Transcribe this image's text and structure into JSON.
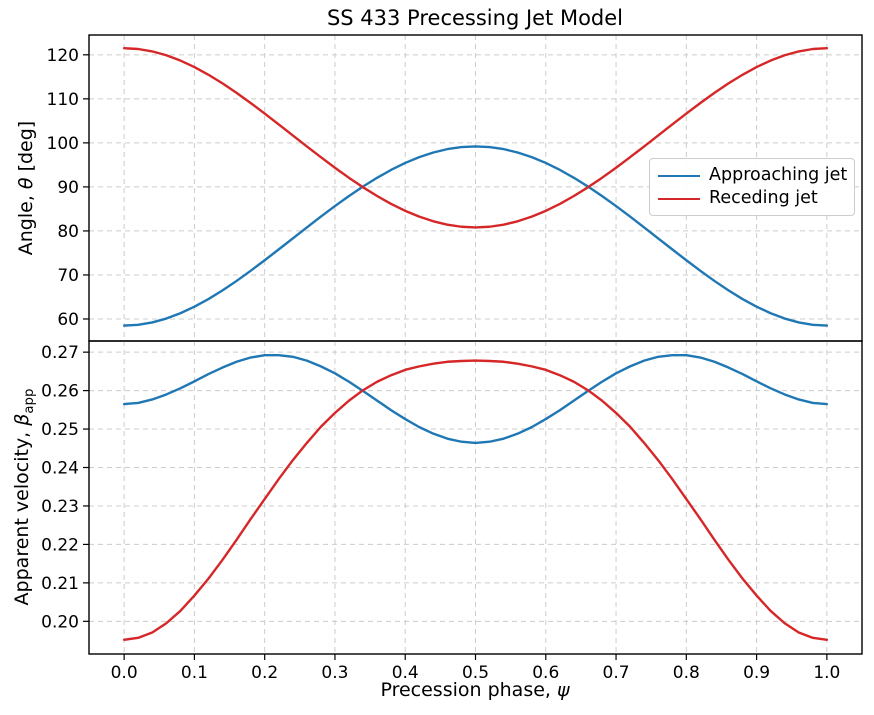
{
  "title": "SS 433 Precessing Jet Model",
  "colors": {
    "approaching": "#1f77b4",
    "receding": "#d62728",
    "grid": "#cccccc",
    "spine": "#000000",
    "background": "#ffffff"
  },
  "legend": {
    "items": [
      {
        "label": "Approaching jet",
        "color": "#1f77b4"
      },
      {
        "label": "Receding jet",
        "color": "#d62728"
      }
    ]
  },
  "labels": {
    "xlabel_pre": "Precession phase, ",
    "xlabel_sym": "ψ",
    "ylabel_top_pre": "Angle, ",
    "ylabel_top_sym": "θ",
    "ylabel_top_post": " [deg]",
    "ylabel_bottom_pre": "Apparent velocity, ",
    "ylabel_bottom_sym": "β",
    "ylabel_bottom_sub": "app"
  },
  "chart_data": [
    {
      "type": "line",
      "panel": "top",
      "title": "SS 433 Precessing Jet Model",
      "ylabel": "Angle, θ [deg]",
      "xlim": [
        -0.05,
        1.05
      ],
      "ylim": [
        55.0,
        124.5
      ],
      "grid": true,
      "yticks": [
        "60",
        "70",
        "80",
        "90",
        "100",
        "110",
        "120"
      ],
      "xticks": [
        "0.0",
        "0.1",
        "0.2",
        "0.3",
        "0.4",
        "0.5",
        "0.6",
        "0.7",
        "0.8",
        "0.9",
        "1.0"
      ],
      "show_x_tick_labels": false,
      "legend_position": "center right",
      "x": [
        0.0,
        0.02,
        0.04,
        0.06,
        0.08,
        0.1,
        0.12,
        0.14,
        0.16,
        0.18,
        0.2,
        0.22,
        0.24,
        0.26,
        0.28,
        0.3,
        0.32,
        0.34,
        0.36,
        0.38,
        0.4,
        0.42,
        0.44,
        0.46,
        0.48,
        0.5,
        0.52,
        0.54,
        0.56,
        0.58,
        0.6,
        0.62,
        0.64,
        0.66,
        0.68,
        0.7,
        0.72,
        0.74,
        0.76,
        0.78,
        0.8,
        0.82,
        0.84,
        0.86,
        0.88,
        0.9,
        0.92,
        0.94,
        0.96,
        0.98,
        1.0
      ],
      "series": [
        {
          "name": "Approaching jet",
          "color": "#1f77b4",
          "values": [
            58.5,
            58.68,
            59.22,
            60.1,
            61.3,
            62.79,
            64.53,
            66.49,
            68.64,
            70.94,
            73.34,
            75.81,
            78.3,
            80.8,
            83.26,
            85.65,
            87.94,
            90.09,
            92.07,
            93.87,
            95.44,
            96.76,
            97.81,
            98.58,
            99.05,
            99.2,
            99.05,
            98.58,
            97.81,
            96.76,
            95.44,
            93.87,
            92.07,
            90.09,
            87.94,
            85.65,
            83.26,
            80.8,
            78.3,
            75.81,
            73.34,
            70.94,
            68.64,
            66.49,
            64.53,
            62.79,
            61.3,
            60.1,
            59.22,
            58.68,
            58.5
          ]
        },
        {
          "name": "Receding jet",
          "color": "#d62728",
          "values": [
            121.5,
            121.32,
            120.78,
            119.9,
            118.7,
            117.21,
            115.47,
            113.51,
            111.36,
            109.06,
            106.66,
            104.19,
            101.7,
            99.2,
            96.74,
            94.35,
            92.06,
            89.91,
            87.93,
            86.13,
            84.56,
            83.24,
            82.19,
            81.42,
            80.95,
            80.8,
            80.95,
            81.42,
            82.19,
            83.24,
            84.56,
            86.13,
            87.93,
            89.91,
            92.06,
            94.35,
            96.74,
            99.2,
            101.7,
            104.19,
            106.66,
            109.06,
            111.36,
            113.51,
            115.47,
            117.21,
            118.7,
            119.9,
            120.78,
            121.32,
            121.5
          ]
        }
      ]
    },
    {
      "type": "line",
      "panel": "bottom",
      "xlabel": "Precession phase, ψ",
      "ylabel": "Apparent velocity, β_app",
      "xlim": [
        -0.05,
        1.05
      ],
      "ylim": [
        0.1915,
        0.2729
      ],
      "grid": true,
      "yticks": [
        "0.20",
        "0.21",
        "0.22",
        "0.23",
        "0.24",
        "0.25",
        "0.26",
        "0.27"
      ],
      "xticks": [
        "0.0",
        "0.1",
        "0.2",
        "0.3",
        "0.4",
        "0.5",
        "0.6",
        "0.7",
        "0.8",
        "0.9",
        "1.0"
      ],
      "show_x_tick_labels": true,
      "x": [
        0.0,
        0.02,
        0.04,
        0.06,
        0.08,
        0.1,
        0.12,
        0.14,
        0.16,
        0.18,
        0.2,
        0.22,
        0.24,
        0.26,
        0.28,
        0.3,
        0.32,
        0.34,
        0.36,
        0.38,
        0.4,
        0.42,
        0.44,
        0.46,
        0.48,
        0.5,
        0.52,
        0.54,
        0.56,
        0.58,
        0.6,
        0.62,
        0.64,
        0.66,
        0.68,
        0.7,
        0.72,
        0.74,
        0.76,
        0.78,
        0.8,
        0.82,
        0.84,
        0.86,
        0.88,
        0.9,
        0.92,
        0.94,
        0.96,
        0.98,
        1.0
      ],
      "series": [
        {
          "name": "Approaching jet",
          "color": "#1f77b4",
          "values": [
            0.2565,
            0.2568,
            0.2577,
            0.259,
            0.2606,
            0.2624,
            0.2643,
            0.266,
            0.2675,
            0.2686,
            0.2692,
            0.2692,
            0.2688,
            0.2678,
            0.2663,
            0.2645,
            0.2623,
            0.2599,
            0.2574,
            0.2549,
            0.2526,
            0.2505,
            0.2488,
            0.2475,
            0.2467,
            0.2464,
            0.2467,
            0.2475,
            0.2488,
            0.2505,
            0.2526,
            0.2549,
            0.2574,
            0.2599,
            0.2623,
            0.2645,
            0.2663,
            0.2678,
            0.2688,
            0.2692,
            0.2692,
            0.2686,
            0.2675,
            0.266,
            0.2643,
            0.2624,
            0.2606,
            0.259,
            0.2577,
            0.2568,
            0.2565
          ]
        },
        {
          "name": "Receding jet",
          "color": "#d62728",
          "values": [
            0.1952,
            0.1957,
            0.1971,
            0.1995,
            0.2027,
            0.2067,
            0.2111,
            0.216,
            0.2212,
            0.2266,
            0.2318,
            0.237,
            0.2419,
            0.2464,
            0.2506,
            0.2542,
            0.2574,
            0.2601,
            0.2623,
            0.264,
            0.2654,
            0.2663,
            0.267,
            0.2675,
            0.2677,
            0.2678,
            0.2677,
            0.2675,
            0.267,
            0.2663,
            0.2654,
            0.264,
            0.2623,
            0.2601,
            0.2574,
            0.2542,
            0.2506,
            0.2464,
            0.2419,
            0.237,
            0.2318,
            0.2266,
            0.2212,
            0.216,
            0.2111,
            0.2067,
            0.2027,
            0.1995,
            0.1971,
            0.1957,
            0.1952
          ]
        }
      ]
    }
  ]
}
